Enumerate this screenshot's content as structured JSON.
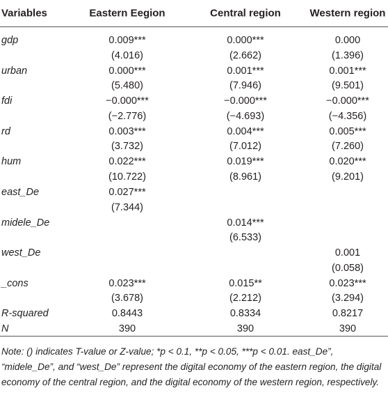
{
  "table": {
    "header": [
      "Variables",
      "Eastern Eegion",
      "Central region",
      "Western region"
    ],
    "rows": [
      {
        "variable": "gdp",
        "cells": [
          [
            "0.009***",
            "(4.016)"
          ],
          [
            "0.000***",
            "(2.662)"
          ],
          [
            "0.000",
            "(1.396)"
          ]
        ]
      },
      {
        "variable": "urban",
        "cells": [
          [
            "0.000***",
            "(5.480)"
          ],
          [
            "0.001***",
            "(7.946)"
          ],
          [
            "0.001***",
            "(9.501)"
          ]
        ]
      },
      {
        "variable": "fdi",
        "cells": [
          [
            "−0.000***",
            "(−2.776)"
          ],
          [
            "−0.000***",
            "(−4.693)"
          ],
          [
            "−0.000***",
            "(−4.356)"
          ]
        ]
      },
      {
        "variable": "rd",
        "cells": [
          [
            "0.003***",
            "(3.732)"
          ],
          [
            "0.004***",
            "(7.012)"
          ],
          [
            "0.005***",
            "(7.260)"
          ]
        ]
      },
      {
        "variable": "hum",
        "cells": [
          [
            "0.022***",
            "(10.722)"
          ],
          [
            "0.019***",
            "(8.961)"
          ],
          [
            "0.020***",
            "(9.201)"
          ]
        ]
      },
      {
        "variable": "east_De",
        "cells": [
          [
            "0.027***",
            "(7.344)"
          ],
          null,
          null
        ]
      },
      {
        "variable": "midele_De",
        "cells": [
          null,
          [
            "0.014***",
            "(6.533)"
          ],
          null
        ]
      },
      {
        "variable": "west_De",
        "cells": [
          null,
          null,
          [
            "0.001",
            "(0.058)"
          ]
        ]
      },
      {
        "variable": "_cons",
        "cells": [
          [
            "0.023***",
            "(3.678)"
          ],
          [
            "0.015**",
            "(2.212)"
          ],
          [
            "0.023***",
            "(3.294)"
          ]
        ]
      },
      {
        "variable": "R-squared",
        "cells": [
          [
            "0.8443"
          ],
          [
            "0.8334"
          ],
          [
            "0.8217"
          ]
        ]
      },
      {
        "variable": "N",
        "cells": [
          [
            "390"
          ],
          [
            "390"
          ],
          [
            "390"
          ]
        ]
      }
    ]
  },
  "note": "Note: () indicates T-value or Z-value; *p < 0.1, **p < 0.05, ***p < 0.01. east_De”, “midele_De”, and “west_De” represent the digital economy of the eastern region, the digital economy of the central region, and the digital economy of the western region, respectively."
}
